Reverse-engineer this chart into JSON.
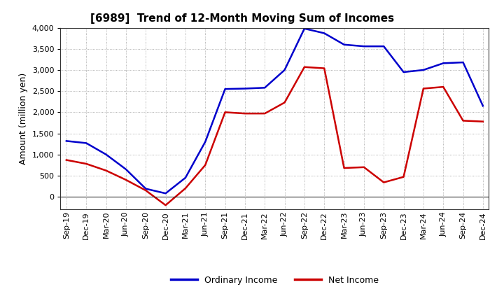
{
  "title": "[6989]  Trend of 12-Month Moving Sum of Incomes",
  "ylabel": "Amount (million yen)",
  "x_labels": [
    "Sep-19",
    "Dec-19",
    "Mar-20",
    "Jun-20",
    "Sep-20",
    "Dec-20",
    "Mar-21",
    "Jun-21",
    "Sep-21",
    "Dec-21",
    "Mar-22",
    "Jun-22",
    "Sep-22",
    "Dec-22",
    "Mar-23",
    "Jun-23",
    "Sep-23",
    "Dec-23",
    "Mar-24",
    "Jun-24",
    "Sep-24",
    "Dec-24"
  ],
  "ordinary_income": [
    1320,
    1270,
    1000,
    650,
    190,
    80,
    450,
    1300,
    2550,
    2560,
    2580,
    3000,
    3980,
    3870,
    3600,
    3560,
    3560,
    2950,
    3000,
    3160,
    3180,
    2150
  ],
  "net_income": [
    870,
    780,
    620,
    400,
    150,
    -200,
    200,
    750,
    2000,
    1970,
    1970,
    2230,
    3070,
    3040,
    680,
    700,
    340,
    470,
    2560,
    2600,
    1800,
    1780
  ],
  "ordinary_color": "#0000cc",
  "net_color": "#cc0000",
  "ylim_min": -300,
  "ylim_max": 4000,
  "yticks": [
    0,
    500,
    1000,
    1500,
    2000,
    2500,
    3000,
    3500,
    4000
  ],
  "background_color": "#ffffff",
  "grid_color": "#999999",
  "legend_ordinary": "Ordinary Income",
  "legend_net": "Net Income",
  "title_fontsize": 11,
  "axis_fontsize": 9,
  "tick_fontsize": 8,
  "legend_fontsize": 9,
  "line_width": 1.8
}
